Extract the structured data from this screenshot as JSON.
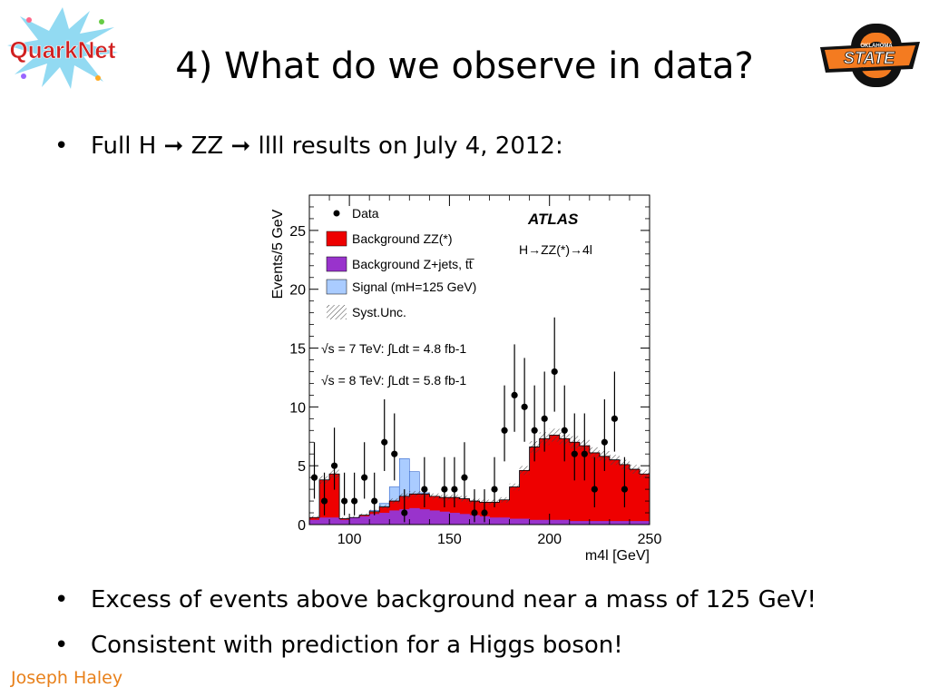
{
  "slide": {
    "title": "4) What do we observe in data?",
    "bullets": [
      "Full H ➞ ZZ ➞ llll  results on July 4, 2012:",
      "Excess of events above background near a mass of 125 GeV!",
      "Consistent with prediction for a Higgs boson!"
    ],
    "footer": "Joseph Haley",
    "logo_left_text": "QuarkNet",
    "logo_right_text": "STATE",
    "logo_right_subtext": "OKLAHOMA",
    "logo_right_subtext2": "UNIVERSITY",
    "colors": {
      "footer": "#e8801a",
      "osu_orange": "#f47b20"
    }
  },
  "chart_data": {
    "type": "bar",
    "title": "ATLAS",
    "subtitle": "H→ZZ(*)→4l",
    "xlabel": "m4l [GeV]",
    "ylabel": "Events/5 GeV",
    "xlim": [
      80,
      250
    ],
    "ylim": [
      0,
      28
    ],
    "xticks": [
      100,
      150,
      200,
      250
    ],
    "yticks": [
      0,
      5,
      10,
      15,
      20,
      25
    ],
    "annotations": [
      "√s = 7 TeV: ∫Ldt = 4.8 fb-1",
      "√s = 8 TeV: ∫Ldt = 5.8 fb-1"
    ],
    "legend_position": "top-left",
    "bin_edges": [
      80,
      85,
      90,
      95,
      100,
      105,
      110,
      115,
      120,
      125,
      130,
      135,
      140,
      145,
      150,
      155,
      160,
      165,
      170,
      175,
      180,
      185,
      190,
      195,
      200,
      205,
      210,
      215,
      220,
      225,
      230,
      235,
      240,
      245,
      250
    ],
    "series": [
      {
        "name": "Background ZZ(*)",
        "color": "#ee0000",
        "stack_top": [
          0.6,
          3.8,
          4.3,
          0.5,
          0.6,
          0.8,
          1.1,
          1.5,
          2.0,
          2.4,
          2.6,
          2.6,
          2.4,
          2.3,
          2.3,
          2.2,
          2.0,
          1.9,
          1.9,
          2.1,
          3.2,
          4.6,
          6.6,
          7.3,
          7.6,
          7.3,
          7.0,
          6.7,
          6.1,
          5.8,
          5.5,
          5.1,
          4.7,
          4.3
        ]
      },
      {
        "name": "Background Z+jets, tt̅",
        "color": "#9933cc",
        "stack_top": [
          0.4,
          0.6,
          0.6,
          0.4,
          0.6,
          0.7,
          0.9,
          1.0,
          1.2,
          1.3,
          1.4,
          1.3,
          1.2,
          1.1,
          1.0,
          0.9,
          0.8,
          0.7,
          0.6,
          0.6,
          0.5,
          0.5,
          0.4,
          0.4,
          0.4,
          0.4,
          0.3,
          0.3,
          0.3,
          0.3,
          0.3,
          0.3,
          0.3,
          0.3
        ]
      },
      {
        "name": "Signal (mH=125 GeV)",
        "color": "#aaccff",
        "stack_top": [
          0.6,
          3.8,
          4.3,
          0.5,
          0.6,
          0.8,
          1.2,
          1.8,
          3.2,
          5.6,
          4.5,
          2.7,
          2.4,
          2.3,
          2.3,
          2.2,
          2.0,
          1.9,
          1.9,
          2.1,
          3.2,
          4.6,
          6.6,
          7.3,
          7.6,
          7.3,
          7.0,
          6.7,
          6.1,
          5.8,
          5.5,
          5.1,
          4.7,
          4.3
        ]
      }
    ],
    "systematics_label": "Syst.Unc.",
    "data_label": "Data",
    "data": [
      {
        "x": 82.5,
        "y": 4
      },
      {
        "x": 87.5,
        "y": 2
      },
      {
        "x": 92.5,
        "y": 5
      },
      {
        "x": 97.5,
        "y": 2
      },
      {
        "x": 102.5,
        "y": 2
      },
      {
        "x": 107.5,
        "y": 4
      },
      {
        "x": 112.5,
        "y": 2
      },
      {
        "x": 117.5,
        "y": 7
      },
      {
        "x": 122.5,
        "y": 6
      },
      {
        "x": 127.5,
        "y": 1
      },
      {
        "x": 137.5,
        "y": 3
      },
      {
        "x": 147.5,
        "y": 3
      },
      {
        "x": 152.5,
        "y": 3
      },
      {
        "x": 157.5,
        "y": 4
      },
      {
        "x": 162.5,
        "y": 1
      },
      {
        "x": 167.5,
        "y": 1
      },
      {
        "x": 172.5,
        "y": 3
      },
      {
        "x": 177.5,
        "y": 8
      },
      {
        "x": 182.5,
        "y": 11
      },
      {
        "x": 187.5,
        "y": 10
      },
      {
        "x": 192.5,
        "y": 8
      },
      {
        "x": 197.5,
        "y": 9
      },
      {
        "x": 202.5,
        "y": 13
      },
      {
        "x": 207.5,
        "y": 8
      },
      {
        "x": 212.5,
        "y": 6
      },
      {
        "x": 217.5,
        "y": 6
      },
      {
        "x": 222.5,
        "y": 3
      },
      {
        "x": 227.5,
        "y": 7
      },
      {
        "x": 232.5,
        "y": 9
      },
      {
        "x": 237.5,
        "y": 3
      }
    ]
  }
}
